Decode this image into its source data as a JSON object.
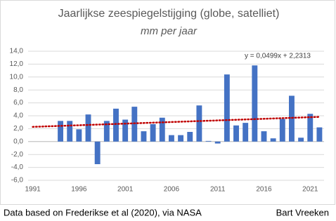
{
  "chart_data": {
    "type": "bar",
    "title": "Jaarlijkse zeespiegelstijging (globe, satelliet)",
    "subtitle": "mm per jaar",
    "categories": [
      "1991",
      null,
      null,
      null,
      null,
      "1996",
      null,
      null,
      null,
      null,
      "2001",
      null,
      null,
      null,
      null,
      "2006",
      null,
      null,
      null,
      null,
      "2011",
      null,
      null,
      null,
      null,
      "2016",
      null,
      null,
      null,
      null,
      "2021",
      null
    ],
    "values": [
      null,
      null,
      null,
      3.2,
      3.2,
      1.9,
      4.2,
      -3.5,
      3.2,
      5.1,
      3.4,
      5.4,
      1.6,
      2.7,
      3.7,
      1.0,
      1.0,
      1.5,
      5.6,
      0.1,
      -0.3,
      10.4,
      2.5,
      2.9,
      11.8,
      1.6,
      0.5,
      3.5,
      7.1,
      0.6,
      4.3,
      2.2
    ],
    "color": "#4472c4",
    "ylim": [
      -6,
      14
    ],
    "yticks": [
      {
        "value": -6,
        "label": "-6,0"
      },
      {
        "value": -4,
        "label": "-4,0"
      },
      {
        "value": -2,
        "label": "-2,0"
      },
      {
        "value": 0,
        "label": "0,0"
      },
      {
        "value": 2,
        "label": "2,0"
      },
      {
        "value": 4,
        "label": "4,0"
      },
      {
        "value": 6,
        "label": "6,0"
      },
      {
        "value": 8,
        "label": "8,0"
      },
      {
        "value": 10,
        "label": "10,0"
      },
      {
        "value": 12,
        "label": "12,0"
      },
      {
        "value": 14,
        "label": "14,0"
      }
    ],
    "grid": true,
    "trendline": {
      "label": "y = 0,0499x + 2,2313",
      "slope": 0.0499,
      "intercept": 2.2313,
      "color": "#c00000"
    },
    "footer_left": "Data based on Frederikse et al (2020), via NASA",
    "footer_right": "Bart Vreeken"
  }
}
